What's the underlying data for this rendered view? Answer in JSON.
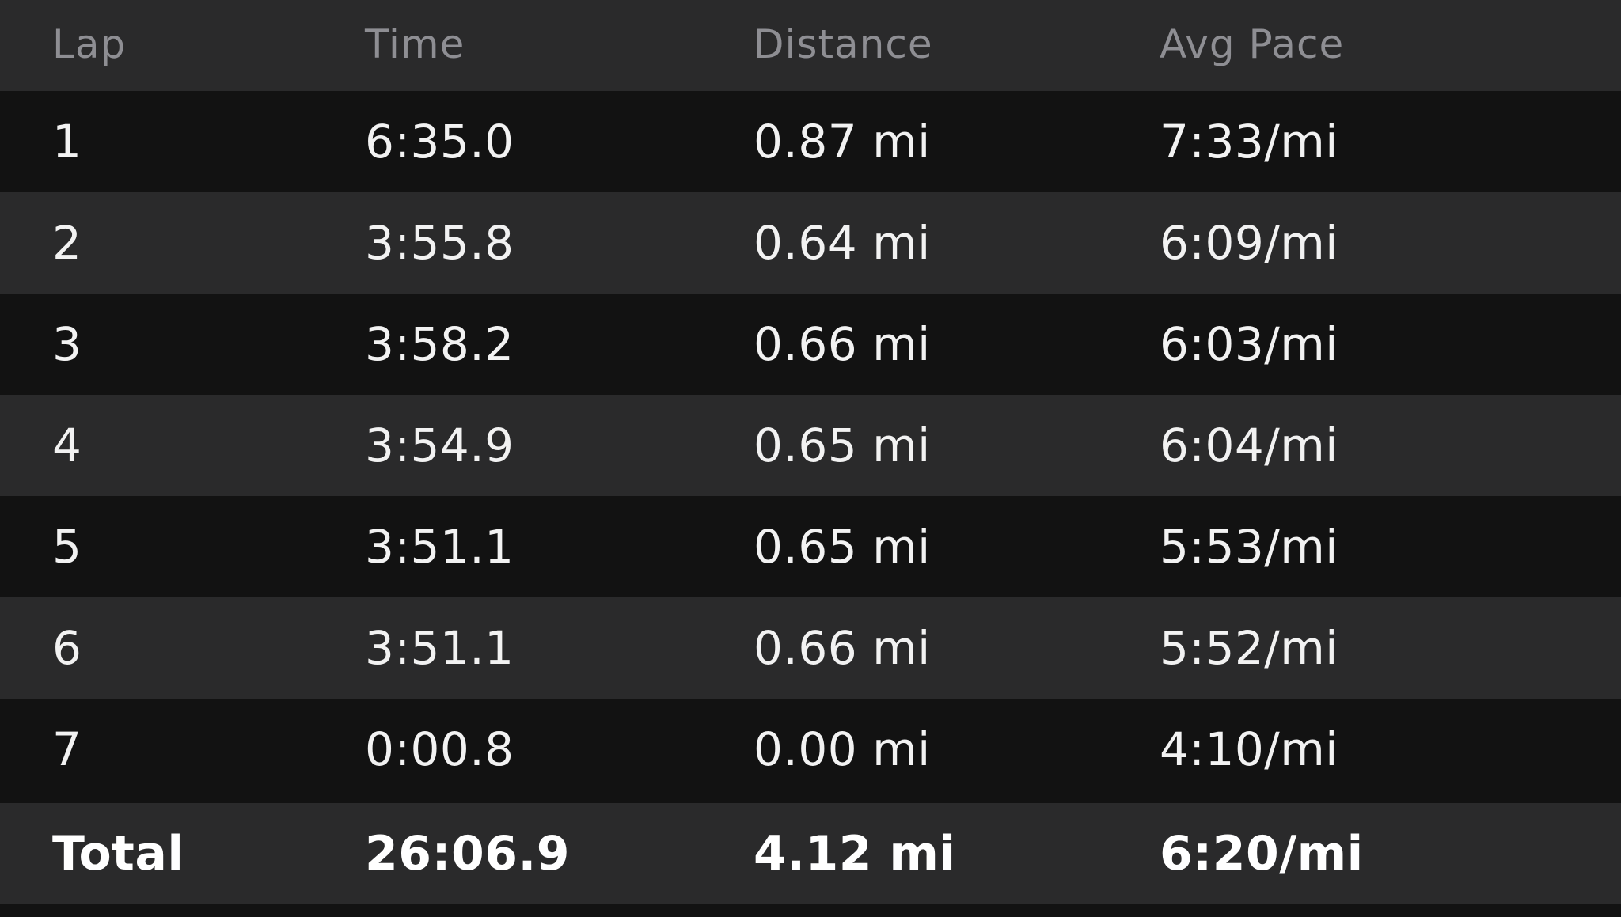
{
  "table": {
    "columns": [
      "Lap",
      "Time",
      "Distance",
      "Avg Pace"
    ],
    "rows": [
      {
        "lap": "1",
        "time": "6:35.0",
        "distance": "0.87 mi",
        "pace": "7:33/mi"
      },
      {
        "lap": "2",
        "time": "3:55.8",
        "distance": "0.64 mi",
        "pace": "6:09/mi"
      },
      {
        "lap": "3",
        "time": "3:58.2",
        "distance": "0.66 mi",
        "pace": "6:03/mi"
      },
      {
        "lap": "4",
        "time": "3:54.9",
        "distance": "0.65 mi",
        "pace": "6:04/mi"
      },
      {
        "lap": "5",
        "time": "3:51.1",
        "distance": "0.65 mi",
        "pace": "5:53/mi"
      },
      {
        "lap": "6",
        "time": "3:51.1",
        "distance": "0.66 mi",
        "pace": "5:52/mi"
      },
      {
        "lap": "7",
        "time": "0:00.8",
        "distance": "0.00 mi",
        "pace": "4:10/mi"
      }
    ],
    "total": {
      "label": "Total",
      "time": "26:06.9",
      "distance": "4.12 mi",
      "pace": "6:20/mi"
    }
  },
  "colors": {
    "background": "#121212",
    "row_alt": "#2a2a2b",
    "header_text": "#8e8e93",
    "text": "#f2f2f2"
  }
}
